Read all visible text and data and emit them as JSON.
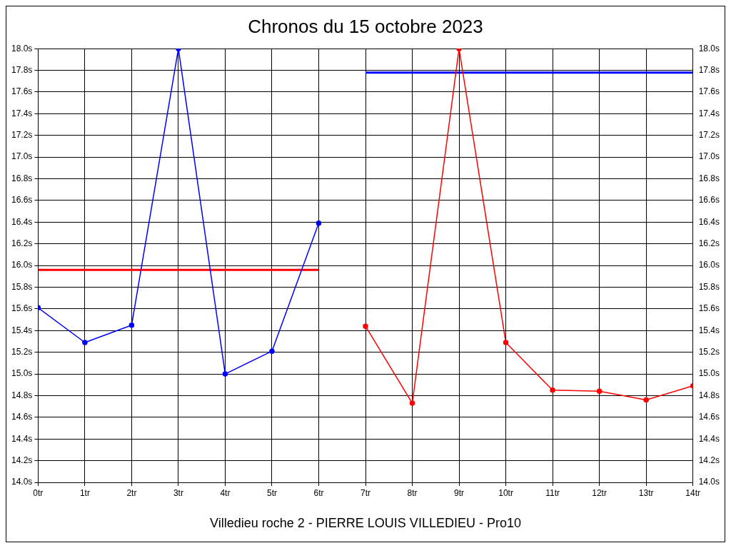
{
  "chart_data": {
    "type": "line",
    "title": "Chronos du 15 octobre 2023",
    "annotations": [
      "Villedieu roche 2 - PIERRE LOUIS VILLEDIEU - Pro10"
    ],
    "xlim": [
      0,
      14
    ],
    "xticks": [
      {
        "value": 0,
        "label": "0tr"
      },
      {
        "value": 1,
        "label": "1tr"
      },
      {
        "value": 2,
        "label": "2tr"
      },
      {
        "value": 3,
        "label": "3tr"
      },
      {
        "value": 4,
        "label": "4tr"
      },
      {
        "value": 5,
        "label": "5tr"
      },
      {
        "value": 6,
        "label": "6tr"
      },
      {
        "value": 7,
        "label": "7tr"
      },
      {
        "value": 8,
        "label": "8tr"
      },
      {
        "value": 9,
        "label": "9tr"
      },
      {
        "value": 10,
        "label": "10tr"
      },
      {
        "value": 11,
        "label": "11tr"
      },
      {
        "value": 12,
        "label": "12tr"
      },
      {
        "value": 13,
        "label": "13tr"
      },
      {
        "value": 14,
        "label": "14tr"
      }
    ],
    "ylim": [
      14,
      18
    ],
    "yticks": [
      {
        "value": 14,
        "label": "14.0s"
      },
      {
        "value": 14.2,
        "label": "14.2s"
      },
      {
        "value": 14.4,
        "label": "14.4s"
      },
      {
        "value": 14.6,
        "label": "14.6s"
      },
      {
        "value": 14.8,
        "label": "14.8s"
      },
      {
        "value": 15,
        "label": "15.0s"
      },
      {
        "value": 15.2,
        "label": "15.2s"
      },
      {
        "value": 15.4,
        "label": "15.4s"
      },
      {
        "value": 15.6,
        "label": "15.6s"
      },
      {
        "value": 15.8,
        "label": "15.8s"
      },
      {
        "value": 16,
        "label": "16.0s"
      },
      {
        "value": 16.2,
        "label": "16.2s"
      },
      {
        "value": 16.4,
        "label": "16.4s"
      },
      {
        "value": 16.6,
        "label": "16.6s"
      },
      {
        "value": 16.8,
        "label": "16.8s"
      },
      {
        "value": 17,
        "label": "17.0s"
      },
      {
        "value": 17.2,
        "label": "17.2s"
      },
      {
        "value": 17.4,
        "label": "17.4s"
      },
      {
        "value": 17.6,
        "label": "17.6s"
      },
      {
        "value": 17.8,
        "label": "17.8s"
      },
      {
        "value": 18,
        "label": "18.0s"
      }
    ],
    "y2lim": [
      14,
      18
    ],
    "y2ticks": [
      {
        "value": 14,
        "label": "14.0s"
      },
      {
        "value": 14.2,
        "label": "14.2s"
      },
      {
        "value": 14.4,
        "label": "14.4s"
      },
      {
        "value": 14.6,
        "label": "14.6s"
      },
      {
        "value": 14.8,
        "label": "14.8s"
      },
      {
        "value": 15,
        "label": "15.0s"
      },
      {
        "value": 15.2,
        "label": "15.2s"
      },
      {
        "value": 15.4,
        "label": "15.4s"
      },
      {
        "value": 15.6,
        "label": "15.6s"
      },
      {
        "value": 15.8,
        "label": "15.8s"
      },
      {
        "value": 16,
        "label": "16.0s"
      },
      {
        "value": 16.2,
        "label": "16.2s"
      },
      {
        "value": 16.4,
        "label": "16.4s"
      },
      {
        "value": 16.6,
        "label": "16.6s"
      },
      {
        "value": 16.8,
        "label": "16.8s"
      },
      {
        "value": 17,
        "label": "17.0s"
      },
      {
        "value": 17.2,
        "label": "17.2s"
      },
      {
        "value": 17.4,
        "label": "17.4s"
      },
      {
        "value": 17.6,
        "label": "17.6s"
      },
      {
        "value": 17.8,
        "label": "17.8s"
      },
      {
        "value": 18,
        "label": "18.0s"
      }
    ],
    "grid": true,
    "legend": false,
    "series": [
      {
        "color": "#0000ff",
        "marker": "circle",
        "x": [
          0,
          1,
          2,
          3,
          4,
          5,
          6
        ],
        "values": [
          15.61,
          15.29,
          15.45,
          18.0,
          15.0,
          15.21,
          16.39
        ]
      },
      {
        "color": "#ff0000",
        "marker": "circle",
        "x": [
          7,
          8,
          9,
          10,
          11,
          12,
          13,
          14
        ],
        "values": [
          15.44,
          14.73,
          18.0,
          15.29,
          14.85,
          14.84,
          14.76,
          14.89
        ]
      },
      {
        "color": "#ff0000",
        "marker": "none",
        "x": [
          0,
          6
        ],
        "values": [
          15.96,
          15.96
        ]
      },
      {
        "color": "#0000ff",
        "marker": "none",
        "x": [
          7,
          14
        ],
        "values": [
          17.78,
          17.78
        ]
      }
    ]
  }
}
